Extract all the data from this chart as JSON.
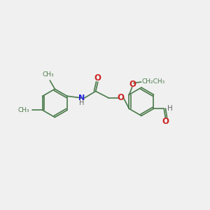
{
  "bg": "#f0f0f0",
  "bond_color": "#4a7a4a",
  "N_color": "#2222dd",
  "O_color": "#cc2222",
  "H_color": "#666666",
  "lw": 1.2,
  "figsize": [
    3.0,
    3.0
  ],
  "dpi": 100,
  "ring_r": 0.38,
  "xlim": [
    -0.1,
    5.5
  ],
  "ylim": [
    0.5,
    4.5
  ]
}
